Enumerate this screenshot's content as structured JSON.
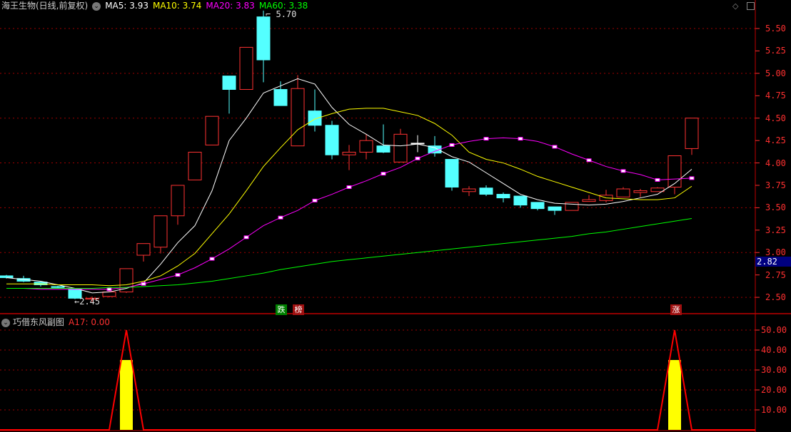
{
  "header": {
    "title": "海王生物(日线,前复权)",
    "menu_icon": "chevron-down-circle-icon",
    "ma_labels": [
      {
        "text": "MA5: 3.93",
        "color": "#ffffff"
      },
      {
        "text": "MA10: 3.74",
        "color": "#ffff00"
      },
      {
        "text": "MA20: 3.83",
        "color": "#ff00ff"
      },
      {
        "text": "MA60: 3.38",
        "color": "#00ff00"
      }
    ]
  },
  "window_icons": [
    "diamond-icon",
    "maximize-icon"
  ],
  "sub_header": {
    "title": "巧借东风副图",
    "value_label": "A17: 0.00"
  },
  "markers": {
    "high": "5.70",
    "low": "2.45",
    "current_price": "2.82"
  },
  "tags": {
    "fall": "跌",
    "rank": "榜",
    "rise": "涨"
  },
  "colors": {
    "up": "#ff3232",
    "down": "#54ffff",
    "grid": "#a00000",
    "axis": "#ff3030"
  },
  "chart_data": [
    {
      "type": "candlestick",
      "title": "海王生物(日线,前复权)",
      "ylim": [
        2.35,
        5.75
      ],
      "yticks": [
        "5.50",
        "5.25",
        "5.00",
        "4.75",
        "4.50",
        "4.25",
        "4.00",
        "3.75",
        "3.50",
        "3.25",
        "3.00",
        "2.75",
        "2.50"
      ],
      "grid": true,
      "candles": [
        [
          2.74,
          2.72,
          2.75,
          2.71
        ],
        [
          2.71,
          2.68,
          2.74,
          2.67
        ],
        [
          2.67,
          2.64,
          2.67,
          2.62
        ],
        [
          2.62,
          2.61,
          2.63,
          2.6
        ],
        [
          2.6,
          2.49,
          2.6,
          2.48
        ],
        [
          2.48,
          2.49,
          2.51,
          2.45
        ],
        [
          2.51,
          2.56,
          2.58,
          2.5
        ],
        [
          2.56,
          2.82,
          2.82,
          2.55
        ],
        [
          2.97,
          3.1,
          3.1,
          2.9
        ],
        [
          3.06,
          3.41,
          3.41,
          2.99
        ],
        [
          3.41,
          3.75,
          3.75,
          3.31
        ],
        [
          3.81,
          4.12,
          4.12,
          3.81
        ],
        [
          4.2,
          4.52,
          4.52,
          4.2
        ],
        [
          4.97,
          4.82,
          4.97,
          4.55
        ],
        [
          4.82,
          5.29,
          5.29,
          4.82
        ],
        [
          5.63,
          5.15,
          5.7,
          4.9
        ],
        [
          4.82,
          4.64,
          4.91,
          4.64
        ],
        [
          4.19,
          4.83,
          4.98,
          4.19
        ],
        [
          4.58,
          4.42,
          4.82,
          4.35
        ],
        [
          4.42,
          4.09,
          4.47,
          4.04
        ],
        [
          4.09,
          4.12,
          4.2,
          3.92
        ],
        [
          4.12,
          4.25,
          4.32,
          4.04
        ],
        [
          4.19,
          4.12,
          4.43,
          4.11
        ],
        [
          4.01,
          4.32,
          4.38,
          4.01
        ],
        [
          4.22,
          4.22,
          4.31,
          4.12
        ],
        [
          4.19,
          4.11,
          4.3,
          4.07
        ],
        [
          4.04,
          3.73,
          4.04,
          3.69
        ],
        [
          3.68,
          3.71,
          3.74,
          3.63
        ],
        [
          3.72,
          3.65,
          3.75,
          3.63
        ],
        [
          3.65,
          3.61,
          3.67,
          3.56
        ],
        [
          3.63,
          3.53,
          3.63,
          3.5
        ],
        [
          3.56,
          3.49,
          3.56,
          3.47
        ],
        [
          3.51,
          3.47,
          3.51,
          3.42
        ],
        [
          3.47,
          3.56,
          3.56,
          3.47
        ],
        [
          3.57,
          3.59,
          3.64,
          3.57
        ],
        [
          3.58,
          3.64,
          3.7,
          3.56
        ],
        [
          3.62,
          3.71,
          3.73,
          3.62
        ],
        [
          3.67,
          3.69,
          3.71,
          3.62
        ],
        [
          3.68,
          3.72,
          3.73,
          3.68
        ],
        [
          3.73,
          4.08,
          4.08,
          3.65
        ],
        [
          4.16,
          4.5,
          4.5,
          4.09
        ]
      ],
      "candle_fields": [
        "open",
        "close",
        "high",
        "low"
      ],
      "series": [
        {
          "name": "MA5",
          "color": "#ffffff",
          "values": [
            2.72,
            2.7,
            2.68,
            2.64,
            2.6,
            2.55,
            2.56,
            2.6,
            2.66,
            2.87,
            3.11,
            3.3,
            3.69,
            4.25,
            4.5,
            4.78,
            4.86,
            4.94,
            4.88,
            4.62,
            4.43,
            4.32,
            4.2,
            4.19,
            4.21,
            4.17,
            4.07,
            4.01,
            3.89,
            3.77,
            3.65,
            3.59,
            3.55,
            3.54,
            3.53,
            3.54,
            3.57,
            3.61,
            3.65,
            3.77,
            3.93
          ]
        },
        {
          "name": "MA10",
          "color": "#ffff00",
          "values": [
            2.65,
            2.65,
            2.65,
            2.64,
            2.64,
            2.64,
            2.63,
            2.64,
            2.68,
            2.74,
            2.85,
            2.99,
            3.21,
            3.43,
            3.69,
            3.96,
            4.17,
            4.37,
            4.49,
            4.55,
            4.6,
            4.61,
            4.61,
            4.57,
            4.53,
            4.44,
            4.31,
            4.12,
            4.04,
            4.0,
            3.93,
            3.85,
            3.79,
            3.73,
            3.67,
            3.61,
            3.6,
            3.59,
            3.59,
            3.61,
            3.74
          ]
        },
        {
          "name": "MA20",
          "color": "#ff00ff",
          "values": [
            2.6,
            2.6,
            2.59,
            2.59,
            2.59,
            2.59,
            2.59,
            2.61,
            2.65,
            2.7,
            2.75,
            2.83,
            2.93,
            3.04,
            3.17,
            3.3,
            3.39,
            3.47,
            3.58,
            3.65,
            3.73,
            3.8,
            3.88,
            3.95,
            4.05,
            4.13,
            4.2,
            4.24,
            4.27,
            4.28,
            4.27,
            4.24,
            4.18,
            4.1,
            4.03,
            3.96,
            3.91,
            3.87,
            3.81,
            3.82,
            3.83
          ]
        },
        {
          "name": "MA60",
          "color": "#00ff00",
          "values": [
            2.6,
            2.6,
            2.6,
            2.6,
            2.6,
            2.6,
            2.61,
            2.61,
            2.62,
            2.63,
            2.64,
            2.66,
            2.68,
            2.71,
            2.74,
            2.77,
            2.81,
            2.84,
            2.87,
            2.9,
            2.92,
            2.94,
            2.96,
            2.98,
            3.0,
            3.02,
            3.04,
            3.06,
            3.08,
            3.1,
            3.12,
            3.14,
            3.16,
            3.18,
            3.21,
            3.23,
            3.26,
            3.29,
            3.32,
            3.35,
            3.38
          ]
        }
      ]
    },
    {
      "type": "bar+line",
      "title": "巧借东风副图",
      "ylim": [
        0,
        55
      ],
      "yticks": [
        "50.00",
        "40.00",
        "30.00",
        "20.00",
        "10.00"
      ],
      "bars": [
        {
          "index": 7,
          "value": 35
        },
        {
          "index": 39,
          "value": 35
        }
      ],
      "line_peaks": [
        {
          "index": 7,
          "value": 50
        },
        {
          "index": 39,
          "value": 50
        }
      ],
      "bar_color": "#ffff00",
      "line_color": "#ff0000"
    }
  ]
}
